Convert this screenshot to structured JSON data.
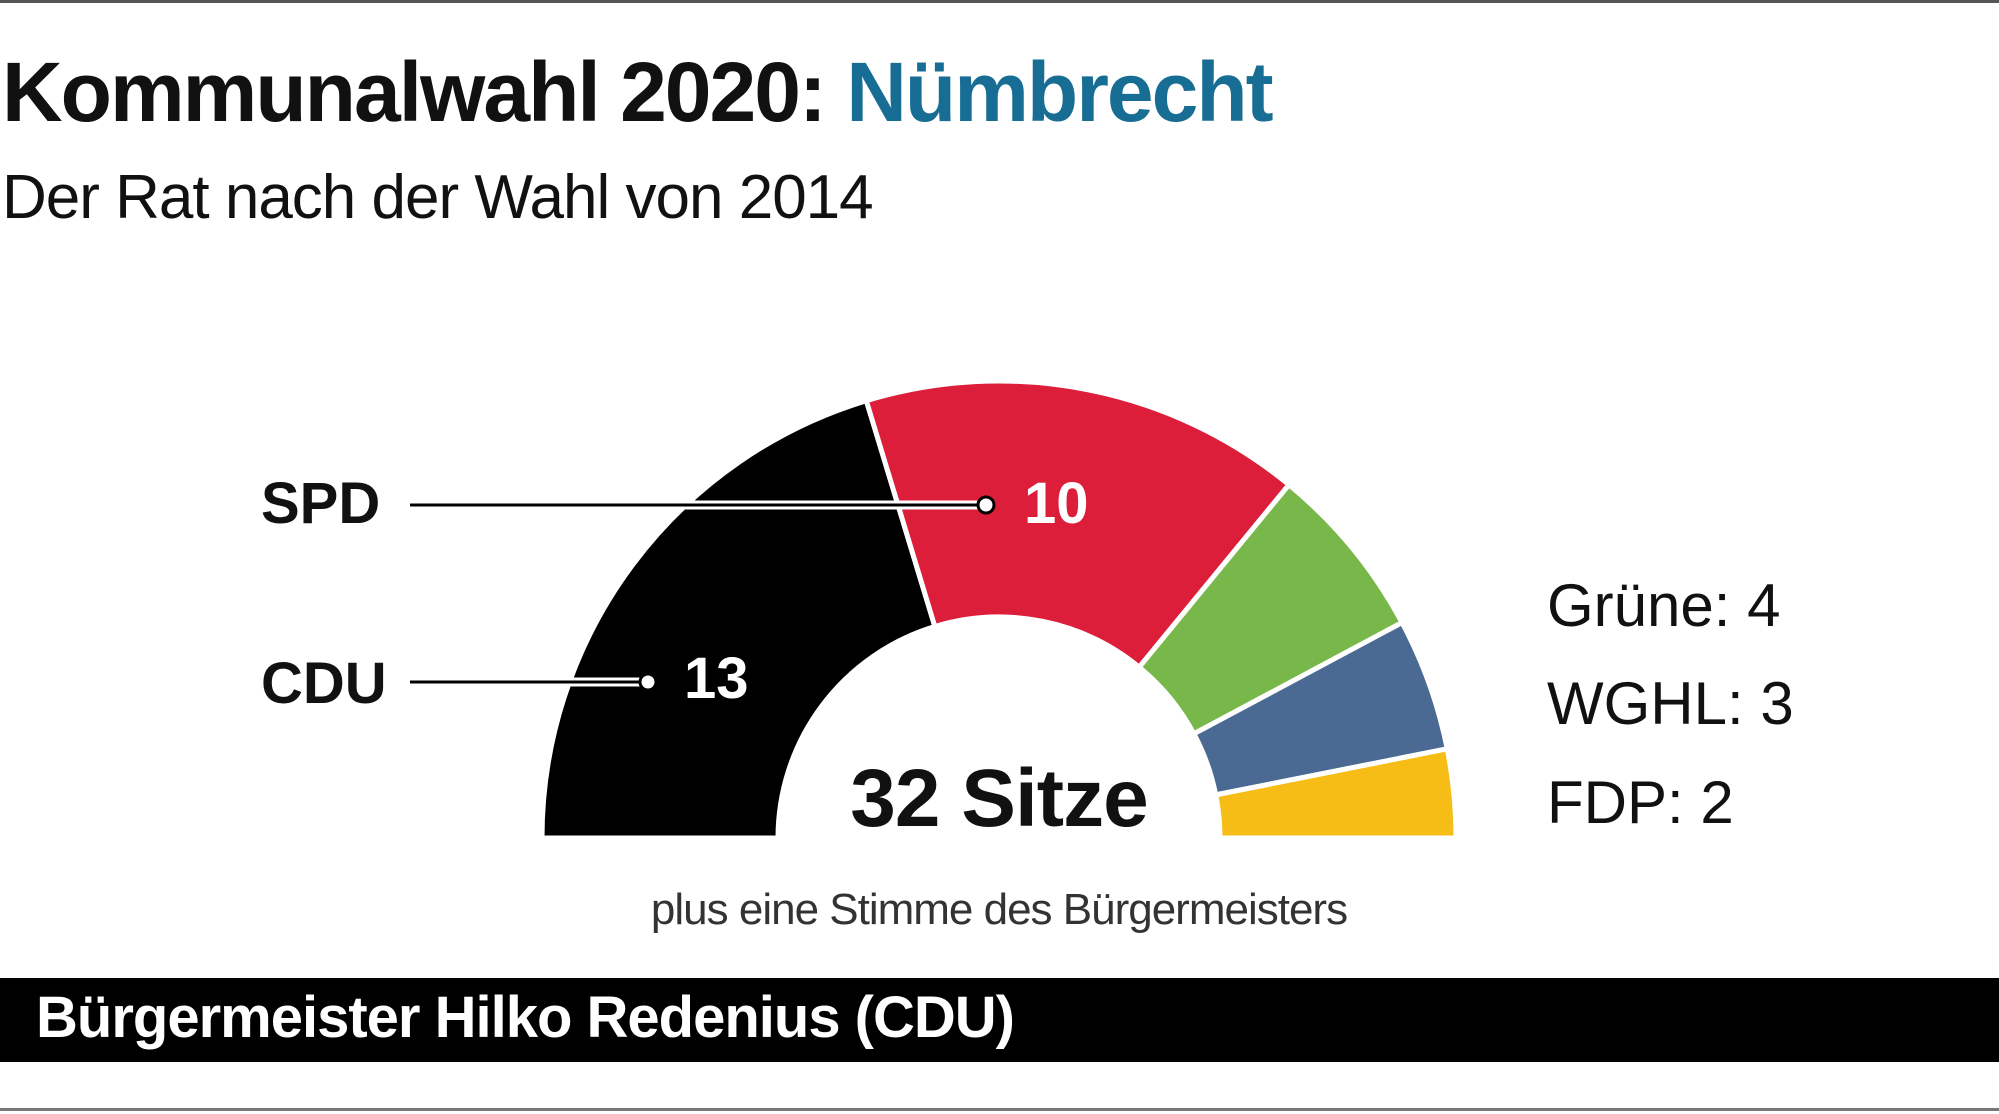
{
  "header": {
    "title_prefix": "Kommunalwahl 2020: ",
    "title_place": "Nümbrecht",
    "subtitle": "Der Rat nach der Wahl von 2014"
  },
  "chart_data": {
    "type": "pie",
    "variant": "semicircle-parliament",
    "total_label": "32 Sitze",
    "total": 32,
    "series": [
      {
        "name": "CDU",
        "value": 13,
        "value_label": "13",
        "color": "#000000"
      },
      {
        "name": "SPD",
        "value": 10,
        "value_label": "10",
        "color": "#dc1e3a"
      },
      {
        "name": "Grüne",
        "value": 4,
        "legend": "Grüne: 4",
        "color": "#78b84a"
      },
      {
        "name": "WGHL",
        "value": 3,
        "legend": "WGHL: 3",
        "color": "#4a6a94"
      },
      {
        "name": "FDP",
        "value": 2,
        "legend": "FDP: 2",
        "color": "#f6bd16"
      }
    ],
    "note": "plus eine Stimme des Bürgermeisters"
  },
  "footer": {
    "mayor": "Bürgermeister Hilko Redenius (CDU)"
  }
}
